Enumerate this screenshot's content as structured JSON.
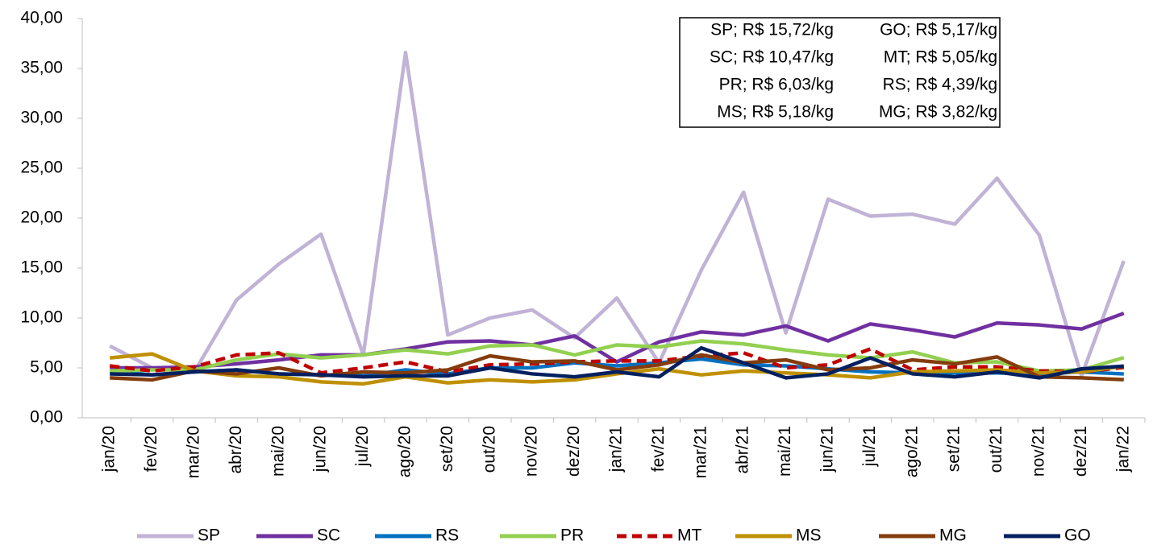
{
  "chart_data": {
    "type": "line",
    "categories": [
      "jan/20",
      "fev/20",
      "mar/20",
      "abr/20",
      "mai/20",
      "jun/20",
      "jul/20",
      "ago/20",
      "set/20",
      "out/20",
      "nov/20",
      "dez/20",
      "jan/21",
      "fev/21",
      "mar/21",
      "abr/21",
      "mai/21",
      "jun/21",
      "jul/21",
      "ago/21",
      "set/21",
      "out/21",
      "nov/21",
      "dez/21",
      "jan/22"
    ],
    "series": [
      {
        "name": "SP",
        "color": "#c0b3d6",
        "values": [
          7.2,
          5.0,
          4.6,
          11.8,
          15.4,
          18.4,
          6.3,
          36.6,
          8.3,
          10.0,
          10.8,
          8.0,
          12.0,
          5.5,
          14.8,
          22.6,
          8.5,
          21.9,
          20.2,
          20.4,
          19.4,
          24.0,
          18.3,
          4.2,
          15.72
        ]
      },
      {
        "name": "SC",
        "color": "#7030a0",
        "values": [
          5.0,
          5.0,
          5.1,
          5.4,
          5.8,
          6.3,
          6.3,
          6.9,
          7.6,
          7.7,
          7.3,
          8.2,
          5.6,
          7.6,
          8.6,
          8.3,
          9.2,
          7.7,
          9.4,
          8.8,
          8.1,
          9.5,
          9.3,
          8.9,
          10.47
        ]
      },
      {
        "name": "RS",
        "color": "#0070c0",
        "values": [
          4.7,
          4.3,
          4.6,
          4.8,
          4.4,
          4.3,
          4.2,
          4.8,
          4.4,
          5.0,
          5.0,
          5.5,
          5.2,
          5.5,
          5.9,
          5.3,
          5.2,
          4.9,
          4.6,
          4.5,
          4.5,
          4.5,
          4.4,
          4.6,
          4.39
        ]
      },
      {
        "name": "PR",
        "color": "#92d050",
        "values": [
          4.7,
          4.8,
          4.8,
          5.8,
          6.4,
          6.0,
          6.3,
          6.8,
          6.4,
          7.2,
          7.3,
          6.3,
          7.3,
          7.1,
          7.7,
          7.4,
          6.8,
          6.3,
          6.0,
          6.6,
          5.5,
          5.6,
          4.7,
          4.8,
          6.03
        ]
      },
      {
        "name": "MT",
        "color": "#c00000",
        "dashed": true,
        "values": [
          5.2,
          4.7,
          5.1,
          6.3,
          6.5,
          4.5,
          5.0,
          5.6,
          4.6,
          5.3,
          5.4,
          5.6,
          5.7,
          5.7,
          6.2,
          6.5,
          5.0,
          5.3,
          6.9,
          4.8,
          5.1,
          5.1,
          4.7,
          4.6,
          5.05
        ]
      },
      {
        "name": "MS",
        "color": "#bf9000",
        "values": [
          6.0,
          6.4,
          4.7,
          4.2,
          4.1,
          3.6,
          3.4,
          4.1,
          3.5,
          3.8,
          3.6,
          3.8,
          4.4,
          4.9,
          4.3,
          4.7,
          4.5,
          4.3,
          4.0,
          4.6,
          4.7,
          4.8,
          4.5,
          4.6,
          5.18
        ]
      },
      {
        "name": "MG",
        "color": "#843c0c",
        "values": [
          4.0,
          3.8,
          4.7,
          4.4,
          5.0,
          4.2,
          4.6,
          4.5,
          4.8,
          6.2,
          5.6,
          5.7,
          4.8,
          5.3,
          6.3,
          5.5,
          5.8,
          4.8,
          5.0,
          5.8,
          5.4,
          6.1,
          4.1,
          4.0,
          3.82
        ]
      },
      {
        "name": "GO",
        "color": "#002060",
        "values": [
          4.4,
          4.3,
          4.6,
          4.8,
          4.4,
          4.3,
          4.1,
          4.2,
          4.2,
          5.0,
          4.4,
          4.1,
          4.6,
          4.1,
          7.0,
          5.5,
          4.0,
          4.4,
          6.0,
          4.4,
          4.1,
          4.6,
          4.0,
          4.9,
          5.17
        ]
      }
    ],
    "ylim": [
      0,
      40
    ],
    "yticks": [
      {
        "value": 0,
        "label": "0,00"
      },
      {
        "value": 5,
        "label": "5,00"
      },
      {
        "value": 10,
        "label": "10,00"
      },
      {
        "value": 15,
        "label": "15,00"
      },
      {
        "value": 20,
        "label": "20,00"
      },
      {
        "value": 25,
        "label": "25,00"
      },
      {
        "value": 30,
        "label": "30,00"
      },
      {
        "value": 35,
        "label": "35,00"
      },
      {
        "value": 40,
        "label": "40,00"
      }
    ],
    "annotation": [
      [
        "SP; R$ 15,72/kg",
        "GO; R$ 5,17/kg"
      ],
      [
        "SC; R$ 10,47/kg",
        "MT; R$ 5,05/kg"
      ],
      [
        "PR; R$ 6,03/kg",
        "RS; R$ 4,39/kg"
      ],
      [
        "MS; R$ 5,18/kg",
        "MG; R$ 3,82/kg"
      ]
    ],
    "legend": "bottom"
  }
}
